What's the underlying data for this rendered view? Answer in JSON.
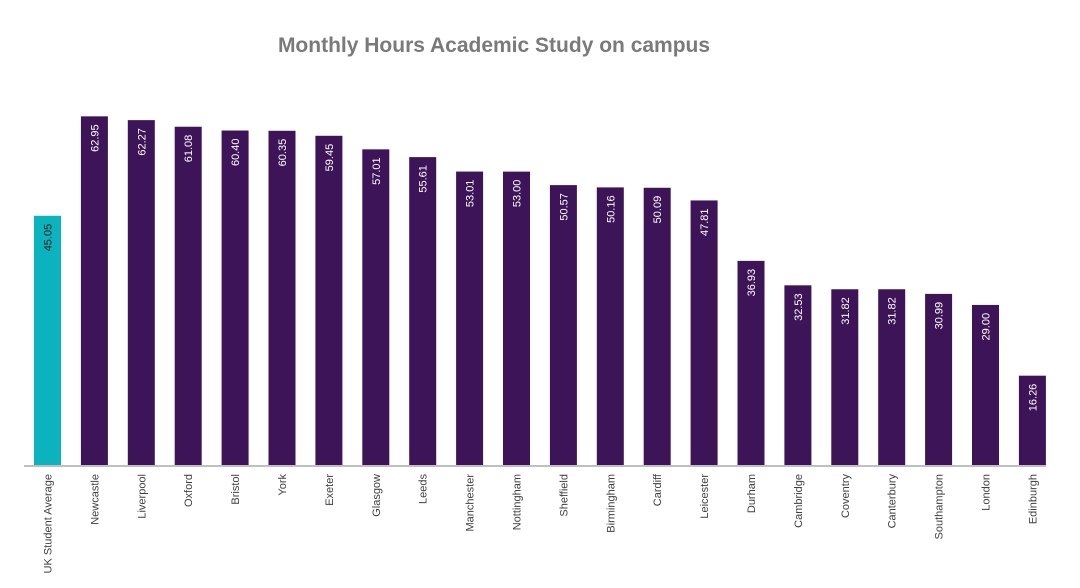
{
  "chart_data": {
    "type": "bar",
    "title": "Monthly Hours Academic Study on campus",
    "xlabel": "",
    "ylabel": "",
    "ylim": [
      0,
      65
    ],
    "grid": false,
    "legend": "none",
    "categories": [
      "UK Student Average",
      "Newcastle",
      "Liverpool",
      "Oxford",
      "Bristol",
      "York",
      "Exeter",
      "Glasgow",
      "Leeds",
      "Manchester",
      "Nottingham",
      "Sheffield",
      "Birmingham",
      "Cardiff",
      "Leicester",
      "Durham",
      "Cambridge",
      "Coventry",
      "Canterbury",
      "Southampton",
      "London",
      "Edinburgh"
    ],
    "values": [
      45.05,
      62.95,
      62.27,
      61.08,
      60.4,
      60.35,
      59.45,
      57.01,
      55.61,
      53.01,
      53.0,
      50.57,
      50.16,
      50.09,
      47.81,
      36.93,
      32.53,
      31.82,
      31.82,
      30.99,
      29.0,
      16.26
    ],
    "value_labels": [
      "45.05",
      "62.95",
      "62.27",
      "61.08",
      "60.40",
      "60.35",
      "59.45",
      "57.01",
      "55.61",
      "53.01",
      "53.00",
      "50.57",
      "50.16",
      "50.09",
      "47.81",
      "36.93",
      "32.53",
      "31.82",
      "31.82",
      "30.99",
      "29.00",
      "16.26"
    ],
    "colors": {
      "highlight": "#0BB3BE",
      "bar": "#3E1459",
      "axis": "#BFBFBF",
      "label_on_highlight": "#1a1a1a",
      "label_on_bar": "#ffffff"
    }
  }
}
